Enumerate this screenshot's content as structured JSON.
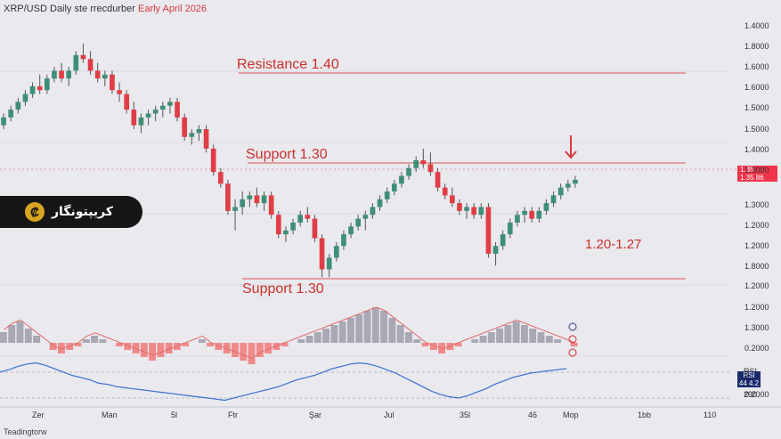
{
  "header": {
    "title_main": "XRP/USD  Daily ste rrecdurber",
    "title_accent": "Early April 2026"
  },
  "badge": {
    "logo_glyph": "₡",
    "name": "کریپتونگار"
  },
  "levels": {
    "resistance_label": "Resistance 1.40",
    "support_upper_label": "Support 1.30",
    "support_lower_label": "Support 1.30",
    "range_label": "1.20-1.27"
  },
  "price_tag": {
    "line1": "1.35",
    "line2": "1.35 86"
  },
  "rsi_tag": {
    "line0": "RSI",
    "line1": "RSI",
    "line2": "44 4.2",
    "line3": "290"
  },
  "footer": {
    "brand": "Teadingtorw"
  },
  "colors": {
    "up": "#3f8f76",
    "down": "#e03e46",
    "line": "#e05a5a",
    "rsi": "#3b6fd4",
    "macd_line": "#e06a6a"
  },
  "chart_data": {
    "type": "candlestick",
    "y_axis_labels": [
      "1.4000",
      "1.8000",
      "1.6000",
      "1.6000",
      "1.5000",
      "1.5000",
      "1.4000",
      "1.3000",
      "1.3000",
      "1.2000",
      "1.2000",
      "1.8000",
      "1.2000",
      "1.2000",
      "1.3000",
      "0.2000",
      "0",
      "0.2000"
    ],
    "x_axis_labels": [
      "Zer",
      "Man",
      "5l",
      "Ftr",
      "Şar",
      "Jul",
      "35l",
      "46",
      "Мор",
      "1bb",
      "110"
    ],
    "candles": [
      [
        1.49,
        1.52,
        1.48,
        1.51
      ],
      [
        1.51,
        1.54,
        1.5,
        1.53
      ],
      [
        1.53,
        1.56,
        1.52,
        1.55
      ],
      [
        1.55,
        1.58,
        1.54,
        1.57
      ],
      [
        1.57,
        1.6,
        1.56,
        1.59
      ],
      [
        1.59,
        1.62,
        1.57,
        1.58
      ],
      [
        1.58,
        1.62,
        1.57,
        1.61
      ],
      [
        1.61,
        1.64,
        1.6,
        1.63
      ],
      [
        1.63,
        1.65,
        1.6,
        1.61
      ],
      [
        1.61,
        1.64,
        1.59,
        1.63
      ],
      [
        1.63,
        1.68,
        1.62,
        1.67
      ],
      [
        1.67,
        1.7,
        1.65,
        1.66
      ],
      [
        1.66,
        1.68,
        1.62,
        1.63
      ],
      [
        1.63,
        1.65,
        1.6,
        1.61
      ],
      [
        1.61,
        1.63,
        1.59,
        1.62
      ],
      [
        1.62,
        1.63,
        1.57,
        1.58
      ],
      [
        1.58,
        1.6,
        1.55,
        1.57
      ],
      [
        1.57,
        1.58,
        1.52,
        1.53
      ],
      [
        1.53,
        1.55,
        1.48,
        1.49
      ],
      [
        1.49,
        1.52,
        1.47,
        1.51
      ],
      [
        1.51,
        1.53,
        1.49,
        1.52
      ],
      [
        1.52,
        1.54,
        1.5,
        1.53
      ],
      [
        1.53,
        1.55,
        1.51,
        1.54
      ],
      [
        1.54,
        1.56,
        1.52,
        1.55
      ],
      [
        1.55,
        1.56,
        1.5,
        1.51
      ],
      [
        1.51,
        1.52,
        1.45,
        1.46
      ],
      [
        1.46,
        1.48,
        1.44,
        1.47
      ],
      [
        1.47,
        1.49,
        1.45,
        1.48
      ],
      [
        1.48,
        1.49,
        1.42,
        1.43
      ],
      [
        1.43,
        1.44,
        1.36,
        1.37
      ],
      [
        1.37,
        1.38,
        1.33,
        1.34
      ],
      [
        1.34,
        1.35,
        1.26,
        1.27
      ],
      [
        1.27,
        1.3,
        1.22,
        1.28
      ],
      [
        1.28,
        1.32,
        1.26,
        1.3
      ],
      [
        1.3,
        1.32,
        1.28,
        1.31
      ],
      [
        1.31,
        1.33,
        1.28,
        1.29
      ],
      [
        1.29,
        1.32,
        1.27,
        1.31
      ],
      [
        1.31,
        1.32,
        1.25,
        1.26
      ],
      [
        1.26,
        1.27,
        1.2,
        1.21
      ],
      [
        1.21,
        1.23,
        1.19,
        1.22
      ],
      [
        1.22,
        1.25,
        1.21,
        1.24
      ],
      [
        1.24,
        1.27,
        1.23,
        1.26
      ],
      [
        1.26,
        1.28,
        1.24,
        1.25
      ],
      [
        1.25,
        1.26,
        1.19,
        1.2
      ],
      [
        1.2,
        1.21,
        1.1,
        1.12
      ],
      [
        1.12,
        1.16,
        1.1,
        1.15
      ],
      [
        1.15,
        1.19,
        1.14,
        1.18
      ],
      [
        1.18,
        1.22,
        1.17,
        1.21
      ],
      [
        1.21,
        1.24,
        1.2,
        1.23
      ],
      [
        1.23,
        1.26,
        1.22,
        1.25
      ],
      [
        1.25,
        1.27,
        1.22,
        1.26
      ],
      [
        1.26,
        1.29,
        1.25,
        1.28
      ],
      [
        1.28,
        1.31,
        1.27,
        1.3
      ],
      [
        1.3,
        1.33,
        1.29,
        1.32
      ],
      [
        1.32,
        1.35,
        1.31,
        1.34
      ],
      [
        1.34,
        1.37,
        1.33,
        1.36
      ],
      [
        1.36,
        1.39,
        1.35,
        1.38
      ],
      [
        1.38,
        1.41,
        1.37,
        1.4
      ],
      [
        1.4,
        1.43,
        1.38,
        1.39
      ],
      [
        1.39,
        1.42,
        1.36,
        1.37
      ],
      [
        1.37,
        1.38,
        1.32,
        1.33
      ],
      [
        1.33,
        1.34,
        1.3,
        1.31
      ],
      [
        1.31,
        1.33,
        1.28,
        1.29
      ],
      [
        1.29,
        1.3,
        1.26,
        1.27
      ],
      [
        1.27,
        1.29,
        1.25,
        1.28
      ],
      [
        1.28,
        1.29,
        1.25,
        1.26
      ],
      [
        1.26,
        1.29,
        1.25,
        1.28
      ],
      [
        1.28,
        1.29,
        1.15,
        1.16
      ],
      [
        1.16,
        1.19,
        1.13,
        1.18
      ],
      [
        1.18,
        1.22,
        1.17,
        1.21
      ],
      [
        1.21,
        1.25,
        1.2,
        1.24
      ],
      [
        1.24,
        1.27,
        1.23,
        1.26
      ],
      [
        1.26,
        1.28,
        1.24,
        1.27
      ],
      [
        1.27,
        1.28,
        1.24,
        1.25
      ],
      [
        1.25,
        1.28,
        1.24,
        1.27
      ],
      [
        1.27,
        1.3,
        1.26,
        1.29
      ],
      [
        1.29,
        1.32,
        1.28,
        1.31
      ],
      [
        1.31,
        1.34,
        1.3,
        1.33
      ],
      [
        1.33,
        1.35,
        1.32,
        1.34
      ],
      [
        1.34,
        1.36,
        1.33,
        1.35
      ]
    ],
    "levels": {
      "resistance": 1.4,
      "support_upper": 1.3,
      "support_lower": 1.3
    },
    "macd_hist": [
      3,
      5,
      6,
      4,
      2,
      0,
      -2,
      -3,
      -2,
      -1,
      1,
      2,
      1,
      0,
      -1,
      -2,
      -3,
      -4,
      -5,
      -4,
      -3,
      -2,
      -1,
      0,
      1,
      -1,
      -2,
      -3,
      -4,
      -5,
      -6,
      -4,
      -3,
      -2,
      -1,
      0,
      1,
      2,
      3,
      4,
      5,
      6,
      7,
      8,
      9,
      10,
      9,
      7,
      5,
      3,
      1,
      -1,
      -2,
      -3,
      -2,
      -1,
      0,
      1,
      2,
      3,
      4,
      5,
      6,
      5,
      4,
      3,
      2,
      1,
      0,
      -1
    ],
    "rsi": [
      55,
      57,
      60,
      62,
      63,
      61,
      58,
      55,
      52,
      50,
      48,
      45,
      44,
      42,
      41,
      40,
      39,
      38,
      37,
      36,
      35,
      34,
      33,
      32,
      31,
      30,
      32,
      34,
      36,
      38,
      40,
      42,
      45,
      48,
      50,
      52,
      55,
      58,
      60,
      62,
      63,
      62,
      60,
      57,
      54,
      50,
      46,
      42,
      38,
      35,
      33,
      32,
      34,
      37,
      40,
      44,
      47,
      50,
      52,
      54,
      55,
      56,
      57,
      58
    ]
  }
}
